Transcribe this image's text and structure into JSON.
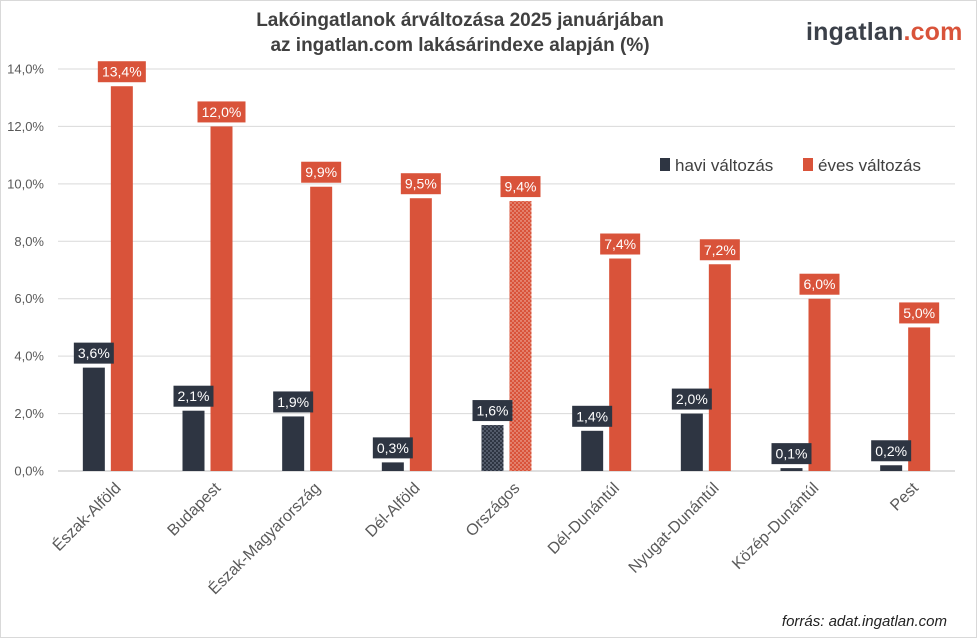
{
  "header": {
    "title_line1": "Lakóingatlanok árváltozása 2025 januárjában",
    "title_line2": "az ingatlan.com lakásárindexe alapján (%)"
  },
  "logo": {
    "main": "ingatlan",
    "accent": ".com"
  },
  "footer": {
    "source": "forrás: adat.ingatlan.com"
  },
  "colors": {
    "havi": "#2e3542",
    "eves": "#d9533a"
  },
  "chart_data": {
    "type": "bar",
    "title": "Lakóingatlanok árváltozása 2025 januárjában az ingatlan.com lakásárindexe alapján (%)",
    "xlabel": "",
    "ylabel": "",
    "ylim": [
      0,
      14
    ],
    "y_ticks": [
      "0,0%",
      "2,0%",
      "4,0%",
      "6,0%",
      "8,0%",
      "10,0%",
      "12,0%",
      "14,0%"
    ],
    "grid": true,
    "legend_position": "top-right",
    "highlight_category": "Országos",
    "categories": [
      "Észak-Alföld",
      "Budapest",
      "Észak-Magyarország",
      "Dél-Alföld",
      "Országos",
      "Dél-Dunántúl",
      "Nyugat-Dunántúl",
      "Közép-Dunántúl",
      "Pest"
    ],
    "series": [
      {
        "name": "havi változás",
        "values": [
          3.6,
          2.1,
          1.9,
          0.3,
          1.6,
          1.4,
          2.0,
          0.1,
          0.2
        ],
        "labels": [
          "3,6%",
          "2,1%",
          "1,9%",
          "0,3%",
          "1,6%",
          "1,4%",
          "2,0%",
          "0,1%",
          "0,2%"
        ]
      },
      {
        "name": "éves változás",
        "values": [
          13.4,
          12.0,
          9.9,
          9.5,
          9.4,
          7.4,
          7.2,
          6.0,
          5.0
        ],
        "labels": [
          "13,4%",
          "12,0%",
          "9,9%",
          "9,5%",
          "9,4%",
          "7,4%",
          "7,2%",
          "6,0%",
          "5,0%"
        ]
      }
    ]
  }
}
